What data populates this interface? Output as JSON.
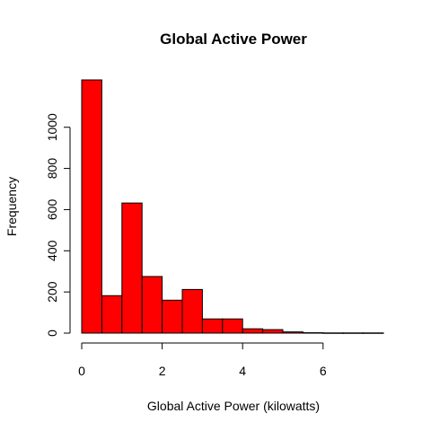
{
  "chart_data": {
    "type": "bar",
    "title": "Global Active Power",
    "xlabel": "Global Active Power (kilowatts)",
    "ylabel": "Frequency",
    "bin_edges": [
      0,
      0.5,
      1,
      1.5,
      2,
      2.5,
      3,
      3.5,
      4,
      4.5,
      5,
      5.5,
      6,
      6.5,
      7,
      7.5
    ],
    "values": [
      1230,
      182,
      632,
      275,
      160,
      212,
      69,
      69,
      21,
      17,
      6,
      2,
      1,
      1,
      1
    ],
    "xlim": [
      0,
      7.5
    ],
    "ylim": [
      0,
      1230
    ],
    "xticks": [
      0,
      2,
      4,
      6
    ],
    "yticks": [
      0,
      200,
      400,
      600,
      800,
      1000
    ],
    "grid": false,
    "bar_color": "#ff0000"
  }
}
